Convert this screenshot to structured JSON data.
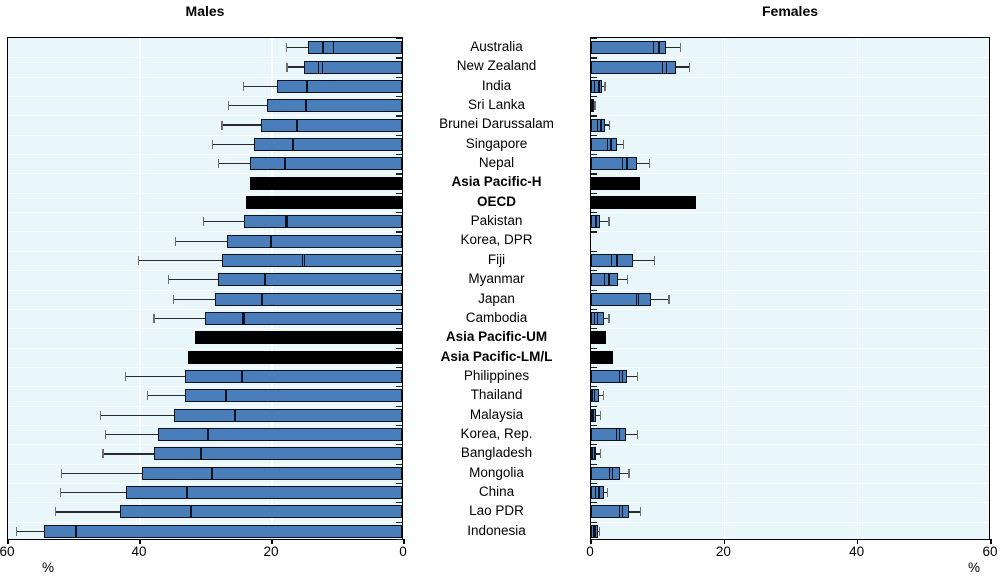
{
  "titles": {
    "males": "Males",
    "females": "Females"
  },
  "chart_data": {
    "type": "bar",
    "orientation": "horizontal",
    "subtype": "paired bars with uncertainty boxes and whiskers",
    "legend_position": "none",
    "grid": "vertical gridlines at 20 and 40",
    "axis": {
      "min": 0,
      "max": 60,
      "ticks": [
        0,
        20,
        40,
        60
      ],
      "xlabel": "%",
      "males_axis_reversed": true
    },
    "series_note": "Each country row: bar = blue bar length; box spans lo..bar with divider line at est; whisker extends from bar to hi. Black rows are aggregate bars without intervals.",
    "rows": [
      {
        "label": "Australia",
        "bold": false,
        "black": false,
        "males": {
          "lo": 10.3,
          "est": 12.0,
          "bar": 14.2,
          "hi": 17.5
        },
        "females": {
          "lo": 9.3,
          "est": 10.2,
          "bar": 11.3,
          "hi": 13.4
        }
      },
      {
        "label": "New Zealand",
        "bold": false,
        "black": false,
        "males": {
          "lo": 12.0,
          "est": 12.7,
          "bar": 14.9,
          "hi": 17.4
        },
        "females": {
          "lo": 10.7,
          "est": 11.3,
          "bar": 12.7,
          "hi": 14.8
        }
      },
      {
        "label": "India",
        "bold": false,
        "black": false,
        "males": {
          "lo": 14.3,
          "est": 14.5,
          "bar": 19.0,
          "hi": 24.0
        },
        "females": {
          "lo": 0.5,
          "est": 1.2,
          "bar": 1.6,
          "hi": 2.1
        }
      },
      {
        "label": "Sri Lanka",
        "bold": false,
        "black": false,
        "males": {
          "lo": 14.4,
          "est": 14.6,
          "bar": 20.5,
          "hi": 26.3
        },
        "females": {
          "lo": 0.1,
          "est": 0.25,
          "bar": 0.4,
          "hi": 0.6
        }
      },
      {
        "label": "Brunei Darussalam",
        "bold": false,
        "black": false,
        "males": {
          "lo": 15.8,
          "est": 16.0,
          "bar": 21.4,
          "hi": 27.3
        },
        "females": {
          "lo": 0.9,
          "est": 1.5,
          "bar": 2.1,
          "hi": 2.8
        }
      },
      {
        "label": "Singapore",
        "bold": false,
        "black": false,
        "males": {
          "lo": 16.4,
          "est": 16.6,
          "bar": 22.5,
          "hi": 28.7
        },
        "females": {
          "lo": 2.4,
          "est": 3.0,
          "bar": 3.9,
          "hi": 4.9
        }
      },
      {
        "label": "Nepal",
        "bold": false,
        "black": false,
        "males": {
          "lo": 17.6,
          "est": 17.8,
          "bar": 23.1,
          "hi": 27.8
        },
        "females": {
          "lo": 4.7,
          "est": 5.4,
          "bar": 6.9,
          "hi": 8.8
        }
      },
      {
        "label": "Asia Pacific-H",
        "bold": true,
        "black": true,
        "males": {
          "bar": 23.1
        },
        "females": {
          "bar": 7.4
        }
      },
      {
        "label": "OECD",
        "bold": true,
        "black": true,
        "males": {
          "bar": 23.6
        },
        "females": {
          "bar": 15.8
        }
      },
      {
        "label": "Pakistan",
        "bold": false,
        "black": false,
        "males": {
          "lo": 17.3,
          "est": 17.6,
          "bar": 23.9,
          "hi": 30.1
        },
        "females": {
          "lo": 0.6,
          "est": 0.8,
          "bar": 1.4,
          "hi": 2.7
        }
      },
      {
        "label": "Korea, DPR",
        "bold": false,
        "black": false,
        "males": {
          "lo": 19.7,
          "est": 19.9,
          "bar": 26.5,
          "hi": 34.3
        },
        "females": {
          "lo": 0,
          "est": 0,
          "bar": 0,
          "hi": 0
        }
      },
      {
        "label": "Fiji",
        "bold": false,
        "black": false,
        "males": {
          "lo": 14.7,
          "est": 15.1,
          "bar": 27.2,
          "hi": 39.9
        },
        "females": {
          "lo": 3.0,
          "est": 3.9,
          "bar": 6.3,
          "hi": 9.5
        }
      },
      {
        "label": "Myanmar",
        "bold": false,
        "black": false,
        "males": {
          "lo": 20.6,
          "est": 20.8,
          "bar": 27.9,
          "hi": 35.4
        },
        "females": {
          "lo": 2.0,
          "est": 2.7,
          "bar": 4.0,
          "hi": 5.5
        }
      },
      {
        "label": "Japan",
        "bold": false,
        "black": false,
        "males": {
          "lo": 21.0,
          "est": 21.2,
          "bar": 28.3,
          "hi": 34.6
        },
        "females": {
          "lo": 6.8,
          "est": 7.1,
          "bar": 9.0,
          "hi": 11.7
        }
      },
      {
        "label": "Cambodia",
        "bold": false,
        "black": false,
        "males": {
          "lo": 23.8,
          "est": 24.1,
          "bar": 29.8,
          "hi": 37.6
        },
        "females": {
          "lo": 0.4,
          "est": 1.0,
          "bar": 1.9,
          "hi": 2.7
        }
      },
      {
        "label": "Asia Pacific-UM",
        "bold": true,
        "black": true,
        "males": {
          "bar": 31.3
        },
        "females": {
          "bar": 2.3
        }
      },
      {
        "label": "Asia Pacific-LM/L",
        "bold": true,
        "black": true,
        "males": {
          "bar": 32.4
        },
        "females": {
          "bar": 3.3
        }
      },
      {
        "label": "Philippines",
        "bold": false,
        "black": false,
        "males": {
          "lo": 24.1,
          "est": 24.3,
          "bar": 32.9,
          "hi": 41.9
        },
        "females": {
          "lo": 4.2,
          "est": 4.7,
          "bar": 5.4,
          "hi": 7.0
        }
      },
      {
        "label": "Thailand",
        "bold": false,
        "black": false,
        "males": {
          "lo": 26.5,
          "est": 26.7,
          "bar": 32.9,
          "hi": 38.6
        },
        "females": {
          "lo": 0.2,
          "est": 0.5,
          "bar": 1.2,
          "hi": 1.9
        }
      },
      {
        "label": "Malaysia",
        "bold": false,
        "black": false,
        "males": {
          "lo": 25.2,
          "est": 25.4,
          "bar": 34.5,
          "hi": 45.7
        },
        "females": {
          "lo": 0.1,
          "est": 0.35,
          "bar": 0.8,
          "hi": 1.4
        }
      },
      {
        "label": "Korea, Rep.",
        "bold": false,
        "black": false,
        "males": {
          "lo": 29.3,
          "est": 29.5,
          "bar": 37.0,
          "hi": 44.9
        },
        "females": {
          "lo": 3.7,
          "est": 4.3,
          "bar": 5.3,
          "hi": 7.0
        }
      },
      {
        "label": "Bangladesh",
        "bold": false,
        "black": false,
        "males": {
          "lo": 30.3,
          "est": 30.5,
          "bar": 37.6,
          "hi": 45.3
        },
        "females": {
          "lo": 0.2,
          "est": 0.5,
          "bar": 0.8,
          "hi": 1.4
        }
      },
      {
        "label": "Mongolia",
        "bold": false,
        "black": false,
        "males": {
          "lo": 28.7,
          "est": 28.9,
          "bar": 39.4,
          "hi": 51.6
        },
        "females": {
          "lo": 2.7,
          "est": 3.2,
          "bar": 4.3,
          "hi": 5.7
        }
      },
      {
        "label": "China",
        "bold": false,
        "black": false,
        "males": {
          "lo": 32.4,
          "est": 32.6,
          "bar": 41.8,
          "hi": 51.7
        },
        "females": {
          "lo": 0.6,
          "est": 1.2,
          "bar": 1.9,
          "hi": 2.5
        }
      },
      {
        "label": "Lao PDR",
        "bold": false,
        "black": false,
        "males": {
          "lo": 31.8,
          "est": 32.0,
          "bar": 42.7,
          "hi": 52.5
        },
        "females": {
          "lo": 4.2,
          "est": 4.7,
          "bar": 5.7,
          "hi": 7.4
        }
      },
      {
        "label": "Indonesia",
        "bold": false,
        "black": false,
        "males": {
          "lo": 49.2,
          "est": 49.4,
          "bar": 54.2,
          "hi": 58.4
        },
        "females": {
          "lo": 0.3,
          "est": 0.6,
          "bar": 1.0,
          "hi": 1.3
        }
      }
    ],
    "colors": {
      "bar_fill": "#4a7ebb",
      "bar_outline": "#0c1220",
      "aggregate_bar": "#000000",
      "plot_background": "#e9f6fa",
      "whisker": "#2a2a2a",
      "whisker_cap": "#6e6e6e"
    }
  }
}
